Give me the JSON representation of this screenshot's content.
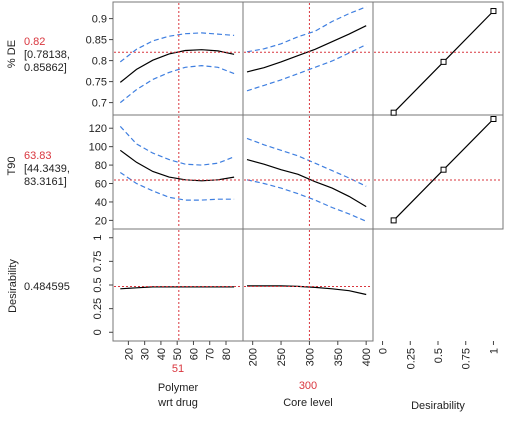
{
  "chart_data": {
    "type": "line",
    "rows": [
      {
        "response": "% DE",
        "predicted": "0.82",
        "ci_lower": "[0.78138,",
        "ci_upper": "0.85862]",
        "yticks": [
          "0.7",
          "0.75",
          "0.8",
          "0.85",
          "0.9"
        ],
        "ylim": [
          0.68,
          0.93
        ],
        "current_y": 0.82,
        "factor_curves": [
          {
            "factor": "Polymer wrt drug",
            "x": [
              15,
              25,
              35,
              45,
              55,
              65,
              75,
              85
            ],
            "y": [
              0.748,
              0.779,
              0.801,
              0.816,
              0.824,
              0.826,
              0.823,
              0.815
            ],
            "upper": [
              0.797,
              0.827,
              0.847,
              0.858,
              0.864,
              0.866,
              0.863,
              0.86
            ],
            "lower": [
              0.7,
              0.731,
              0.755,
              0.772,
              0.784,
              0.788,
              0.784,
              0.769
            ]
          },
          {
            "factor": "Core level",
            "x": [
              190,
              220,
              250,
              280,
              310,
              340,
              370,
              400
            ],
            "y": [
              0.773,
              0.783,
              0.797,
              0.812,
              0.827,
              0.845,
              0.863,
              0.883
            ],
            "upper": [
              0.821,
              0.828,
              0.84,
              0.857,
              0.87,
              0.893,
              0.912,
              0.928
            ],
            "lower": [
              0.728,
              0.741,
              0.754,
              0.769,
              0.784,
              0.799,
              0.818,
              0.838
            ]
          }
        ],
        "desirability_x": [
          0.1,
          0.55,
          1.0
        ],
        "desirability_y": [
          0.676,
          0.797,
          0.918
        ]
      },
      {
        "response": "T90",
        "predicted": "63.83",
        "ci_lower": "[44.3439,",
        "ci_upper": "83.3161]",
        "yticks": [
          "20",
          "40",
          "60",
          "80",
          "100",
          "120"
        ],
        "ylim": [
          15,
          130
        ],
        "current_y": 63.83,
        "factor_curves": [
          {
            "factor": "Polymer wrt drug",
            "x": [
              15,
              25,
              35,
              45,
              55,
              65,
              75,
              85
            ],
            "y": [
              96,
              83,
              73,
              67,
              64,
              63,
              64,
              67
            ],
            "upper": [
              122,
              103,
              93,
              86,
              81,
              80,
              82,
              89
            ],
            "lower": [
              72,
              60,
              52,
              45,
              42,
              42,
              43,
              43
            ]
          },
          {
            "factor": "Core level",
            "x": [
              190,
              220,
              250,
              280,
              310,
              340,
              370,
              400
            ],
            "y": [
              86,
              81,
              75,
              70,
              62,
              55,
              46,
              35
            ],
            "upper": [
              109,
              102,
              96,
              90,
              82,
              74,
              66,
              57
            ],
            "lower": [
              64,
              60,
              55,
              49,
              42,
              34,
              27,
              19
            ]
          }
        ],
        "desirability_x": [
          0.1,
          0.55,
          1.0
        ],
        "desirability_y": [
          20,
          75,
          130
        ]
      },
      {
        "response": "Desirability",
        "predicted": "0.484595",
        "yticks": [
          "0",
          "0.25",
          "0.5",
          "0.75",
          "1"
        ],
        "ylim": [
          -0.05,
          1.05
        ],
        "current_y": 0.484595,
        "factor_curves": [
          {
            "factor": "Polymer wrt drug",
            "x": [
              15,
              25,
              35,
              45,
              55,
              65,
              75,
              85
            ],
            "y": [
              0.46,
              0.47,
              0.48,
              0.48,
              0.48,
              0.48,
              0.48,
              0.48
            ]
          },
          {
            "factor": "Core level",
            "x": [
              190,
              220,
              250,
              280,
              310,
              340,
              370,
              400
            ],
            "y": [
              0.49,
              0.49,
              0.49,
              0.485,
              0.475,
              0.46,
              0.44,
              0.4
            ]
          }
        ]
      }
    ],
    "factors": [
      {
        "name_line1": "Polymer",
        "name_line2": "wrt drug",
        "current": "51",
        "current_value": 51,
        "xlim": [
          13,
          88
        ],
        "xticks": [
          20,
          30,
          40,
          50,
          60,
          70,
          80
        ],
        "xtick_labels": [
          "20",
          "30",
          "40",
          "50",
          "60",
          "70",
          "80"
        ]
      },
      {
        "name_line1": "Core level",
        "name_line2": "",
        "current": "300",
        "current_value": 300,
        "xlim": [
          190,
          405
        ],
        "xticks": [
          200,
          250,
          300,
          350,
          400
        ],
        "xtick_labels": [
          "200",
          "250",
          "300",
          "350",
          "400"
        ]
      },
      {
        "name_line1": "Desirability",
        "name_line2": "",
        "current": "",
        "current_value": null,
        "xlim": [
          -0.05,
          1.05
        ],
        "xticks": [
          0,
          0.25,
          0.5,
          0.75,
          1
        ],
        "xtick_labels": [
          "0",
          "0.25",
          "0.5",
          "0.75",
          "1"
        ]
      }
    ],
    "colors": {
      "prediction": "#000000",
      "confidence": "#3f7fe0",
      "crosshair": "#d9363e",
      "frame": "#777777"
    },
    "grid": false
  }
}
